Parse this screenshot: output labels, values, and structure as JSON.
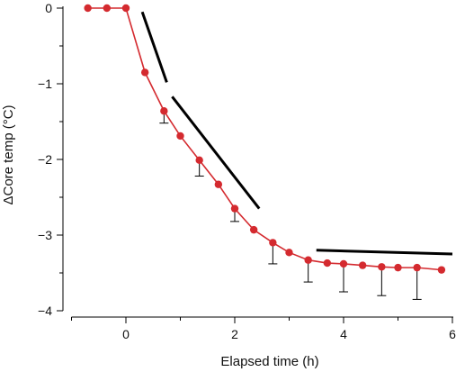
{
  "chart_data": {
    "type": "line",
    "title": "",
    "xlabel": "Elapsed time (h)",
    "ylabel": "ΔCore temp (°C)",
    "xlim": [
      -1,
      6
    ],
    "ylim": [
      -4,
      0
    ],
    "xticks": [
      0,
      2,
      4,
      6
    ],
    "xtick_labels": [
      "0",
      "2",
      "4",
      "6"
    ],
    "yticks": [
      0,
      -1,
      -2,
      -3,
      -4
    ],
    "ytick_labels": [
      "0",
      "−1",
      "−2",
      "−3",
      "−4"
    ],
    "grid": false,
    "legend": "none",
    "series": [
      {
        "color": "#d42a2f",
        "x": [
          -0.7,
          -0.35,
          0.0,
          0.35,
          0.7,
          1.0,
          1.35,
          1.7,
          2.0,
          2.35,
          2.7,
          3.0,
          3.35,
          3.7,
          4.0,
          4.35,
          4.7,
          5.0,
          5.35,
          5.8
        ],
        "y": [
          0.0,
          0.0,
          0.0,
          -0.85,
          -1.36,
          -1.69,
          -2.01,
          -2.33,
          -2.65,
          -2.93,
          -3.1,
          -3.23,
          -3.33,
          -3.37,
          -3.38,
          -3.4,
          -3.42,
          -3.43,
          -3.43,
          -3.46
        ],
        "error_upper": [
          null,
          null,
          null,
          null,
          -1.52,
          null,
          -2.22,
          null,
          -2.82,
          null,
          -3.38,
          null,
          -3.62,
          null,
          -3.75,
          null,
          -3.8,
          null,
          -3.85,
          null
        ]
      }
    ],
    "annotations": [
      {
        "type": "reference-line",
        "color": "#000000",
        "x": [
          0.3,
          0.75
        ],
        "y": [
          -0.05,
          -0.98
        ]
      },
      {
        "type": "reference-line",
        "color": "#000000",
        "x": [
          0.85,
          2.45
        ],
        "y": [
          -1.17,
          -2.65
        ]
      },
      {
        "type": "reference-line",
        "color": "#000000",
        "x": [
          3.5,
          6.0
        ],
        "y": [
          -3.2,
          -3.25
        ]
      }
    ]
  }
}
